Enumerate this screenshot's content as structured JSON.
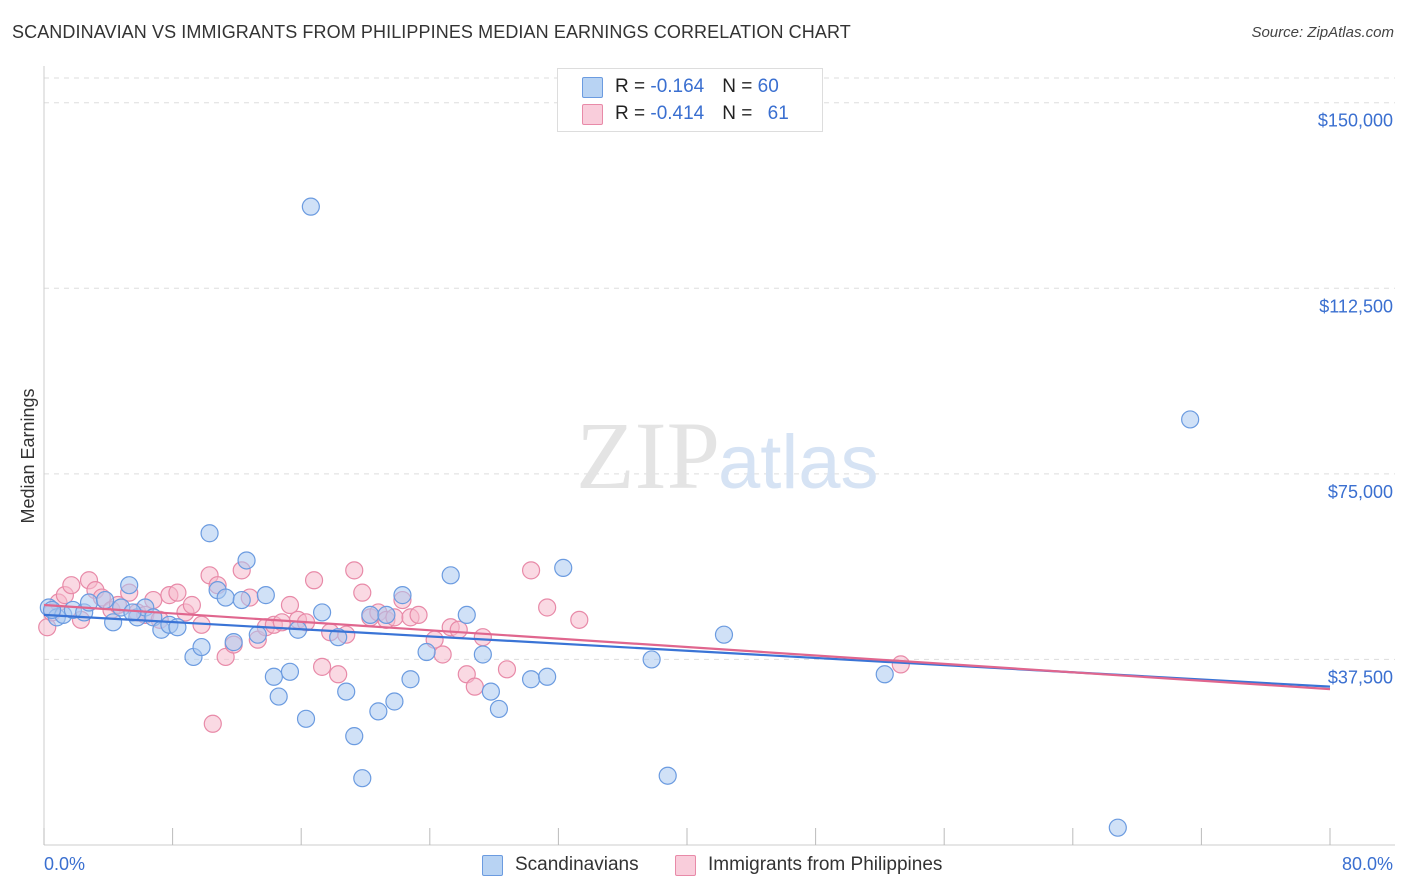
{
  "title": "SCANDINAVIAN VS IMMIGRANTS FROM PHILIPPINES MEDIAN EARNINGS CORRELATION CHART",
  "source": "Source: ZipAtlas.com",
  "watermark": {
    "zip": "ZIP",
    "atlas": "atlas"
  },
  "legend": {
    "rows": [
      {
        "r_label": "R = ",
        "r_value": "-0.164",
        "n_label": "N = ",
        "n_value": "60"
      },
      {
        "r_label": "R = ",
        "r_value": "-0.414",
        "n_label": "N = ",
        "n_value": "61"
      }
    ]
  },
  "bottom_legend": {
    "series1": "Scandinavians",
    "series2": "Immigrants from Philippines"
  },
  "colors": {
    "blue_fill": "#a9c8f0",
    "blue_stroke": "#6b9be0",
    "blue_line": "#3a74d6",
    "pink_fill": "#f6b9cc",
    "pink_stroke": "#e88aa8",
    "pink_line": "#e0668e",
    "grid": "#dddddd",
    "tick_text": "#3a6fd0"
  },
  "chart_data": {
    "type": "scatter",
    "xlabel": "",
    "ylabel": "Median Earnings",
    "xlim": [
      0,
      80
    ],
    "ylim": [
      0,
      155000
    ],
    "x_tick_labels": [
      "0.0%",
      "80.0%"
    ],
    "y_ticks": [
      37500,
      75000,
      112500,
      150000
    ],
    "y_tick_labels": [
      "$37,500",
      "$75,000",
      "$112,500",
      "$150,000"
    ],
    "grid": true,
    "series": [
      {
        "name": "Scandinavians",
        "trend": [
          [
            0,
            46500
          ],
          [
            80,
            32000
          ]
        ],
        "points": [
          [
            0.3,
            48000
          ],
          [
            0.8,
            46000
          ],
          [
            1.2,
            46500
          ],
          [
            1.8,
            47500
          ],
          [
            2.5,
            47000
          ],
          [
            2.8,
            49000
          ],
          [
            3.8,
            49500
          ],
          [
            4.3,
            45000
          ],
          [
            4.8,
            48000
          ],
          [
            5.3,
            52500
          ],
          [
            5.8,
            46000
          ],
          [
            6.3,
            48000
          ],
          [
            6.8,
            46000
          ],
          [
            7.3,
            43500
          ],
          [
            7.8,
            44500
          ],
          [
            8.3,
            44000
          ],
          [
            9.3,
            38000
          ],
          [
            9.8,
            40000
          ],
          [
            10.3,
            63000
          ],
          [
            10.8,
            51500
          ],
          [
            11.3,
            50000
          ],
          [
            11.8,
            41000
          ],
          [
            12.3,
            49500
          ],
          [
            12.6,
            57500
          ],
          [
            13.3,
            42500
          ],
          [
            13.8,
            50500
          ],
          [
            14.3,
            34000
          ],
          [
            14.6,
            30000
          ],
          [
            15.3,
            35000
          ],
          [
            15.8,
            43500
          ],
          [
            16.3,
            25500
          ],
          [
            16.6,
            129000
          ],
          [
            17.3,
            47000
          ],
          [
            18.3,
            42000
          ],
          [
            18.8,
            31000
          ],
          [
            19.3,
            22000
          ],
          [
            19.8,
            13500
          ],
          [
            20.3,
            46500
          ],
          [
            20.8,
            27000
          ],
          [
            21.3,
            46500
          ],
          [
            21.8,
            29000
          ],
          [
            22.3,
            50500
          ],
          [
            22.8,
            33500
          ],
          [
            23.8,
            39000
          ],
          [
            25.3,
            54500
          ],
          [
            26.3,
            46500
          ],
          [
            27.3,
            38500
          ],
          [
            27.8,
            31000
          ],
          [
            28.3,
            27500
          ],
          [
            30.3,
            33500
          ],
          [
            31.3,
            34000
          ],
          [
            32.3,
            56000
          ],
          [
            37.8,
            37500
          ],
          [
            38.8,
            14000
          ],
          [
            42.3,
            42500
          ],
          [
            52.3,
            34500
          ],
          [
            66.8,
            3500
          ],
          [
            71.3,
            86000
          ],
          [
            0.5,
            47500
          ],
          [
            5.5,
            47000
          ]
        ]
      },
      {
        "name": "Immigrants from Philippines",
        "trend": [
          [
            0,
            48500
          ],
          [
            80,
            31500
          ]
        ],
        "points": [
          [
            0.2,
            44000
          ],
          [
            0.5,
            47000
          ],
          [
            0.9,
            49000
          ],
          [
            1.3,
            50500
          ],
          [
            1.7,
            52500
          ],
          [
            2.3,
            45500
          ],
          [
            2.8,
            53500
          ],
          [
            3.2,
            51500
          ],
          [
            3.6,
            50000
          ],
          [
            4.2,
            47500
          ],
          [
            4.6,
            48500
          ],
          [
            5.3,
            51000
          ],
          [
            5.8,
            47000
          ],
          [
            6.3,
            46500
          ],
          [
            6.8,
            49500
          ],
          [
            7.2,
            45500
          ],
          [
            7.8,
            50500
          ],
          [
            8.3,
            51000
          ],
          [
            8.8,
            47000
          ],
          [
            9.2,
            48500
          ],
          [
            9.8,
            44500
          ],
          [
            10.3,
            54500
          ],
          [
            10.8,
            52500
          ],
          [
            11.3,
            38000
          ],
          [
            11.8,
            40500
          ],
          [
            12.3,
            55500
          ],
          [
            12.8,
            50000
          ],
          [
            13.3,
            41500
          ],
          [
            13.8,
            44000
          ],
          [
            14.3,
            44500
          ],
          [
            14.8,
            45000
          ],
          [
            15.3,
            48500
          ],
          [
            15.8,
            45500
          ],
          [
            16.3,
            45000
          ],
          [
            16.8,
            53500
          ],
          [
            17.3,
            36000
          ],
          [
            17.8,
            43000
          ],
          [
            18.3,
            34500
          ],
          [
            18.8,
            42500
          ],
          [
            19.3,
            55500
          ],
          [
            19.8,
            51000
          ],
          [
            20.3,
            46000
          ],
          [
            20.8,
            47000
          ],
          [
            21.3,
            45500
          ],
          [
            21.8,
            46000
          ],
          [
            22.3,
            49500
          ],
          [
            22.8,
            46000
          ],
          [
            23.3,
            46500
          ],
          [
            24.3,
            41500
          ],
          [
            24.8,
            38500
          ],
          [
            25.3,
            44000
          ],
          [
            25.8,
            43500
          ],
          [
            26.3,
            34500
          ],
          [
            26.8,
            32000
          ],
          [
            27.3,
            42000
          ],
          [
            28.8,
            35500
          ],
          [
            30.3,
            55500
          ],
          [
            31.3,
            48000
          ],
          [
            33.3,
            45500
          ],
          [
            53.3,
            36500
          ],
          [
            10.5,
            24500
          ]
        ]
      }
    ]
  }
}
